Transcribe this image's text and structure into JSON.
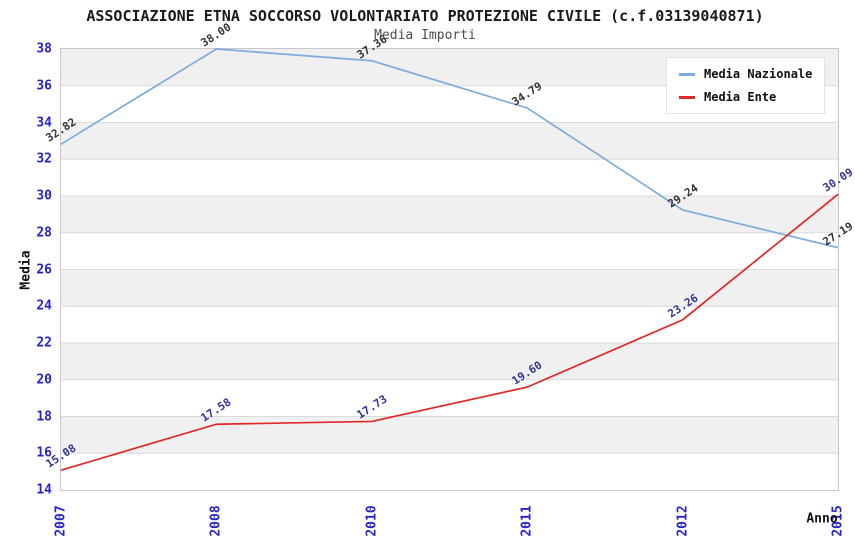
{
  "chart_data": {
    "type": "line",
    "title": "ASSOCIAZIONE ETNA SOCCORSO VOLONTARIATO PROTEZIONE CIVILE (c.f.03139040871)",
    "subtitle": "Media Importi",
    "xlabel": "Anno",
    "ylabel": "Media",
    "categories": [
      "2007",
      "2008",
      "2010",
      "2011",
      "2012",
      "2015"
    ],
    "ylim": [
      14,
      38
    ],
    "ytick_step": 2,
    "grid": true,
    "legend_position": "top-right",
    "series": [
      {
        "name": "Media Nazionale",
        "color": "#7FACDE",
        "label_color": "#333333",
        "values": [
          32.82,
          38.0,
          37.36,
          34.79,
          29.24,
          27.19
        ]
      },
      {
        "name": "Media Ente",
        "color": "#E02828",
        "label_color": "#333399",
        "values": [
          15.08,
          17.58,
          17.73,
          19.6,
          23.26,
          30.09
        ]
      }
    ],
    "colors": {
      "tick_label": "#2424CC",
      "band_gray": "#F0F0F0",
      "gridline": "#DADADA",
      "plot_border": "#C8C8C8",
      "title": "#1A1A1A",
      "subtitle": "#4D4D4D",
      "axis_title": "#111111"
    }
  }
}
